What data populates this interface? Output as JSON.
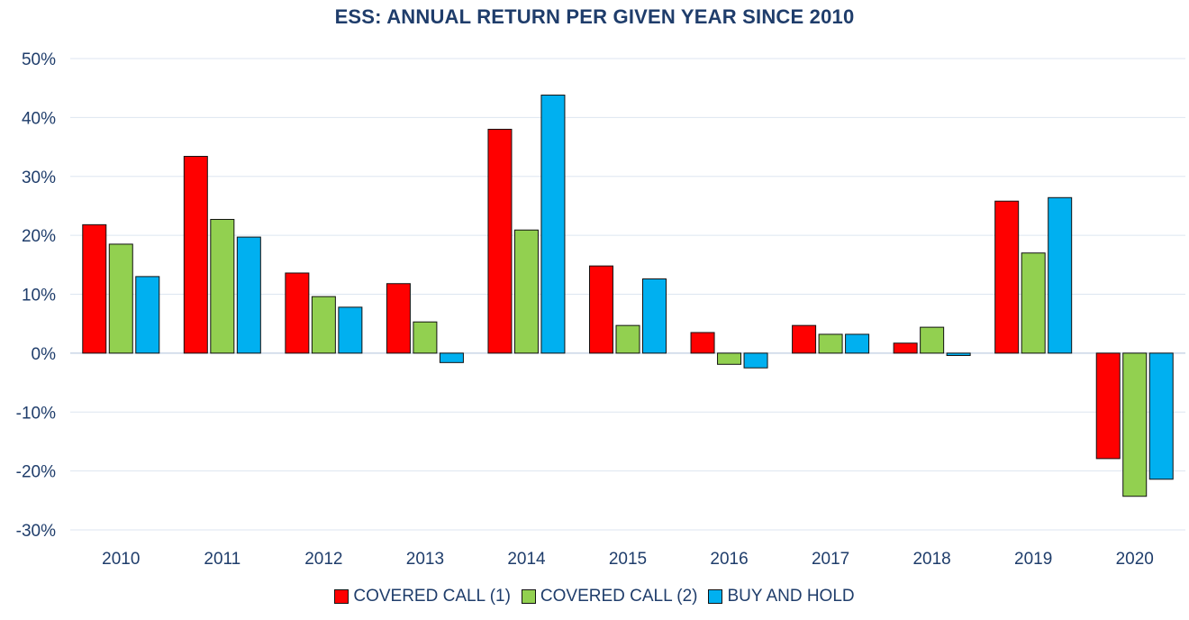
{
  "chart_data": {
    "type": "bar",
    "title": "ESS: ANNUAL RETURN PER GIVEN YEAR SINCE 2010",
    "categories": [
      "2010",
      "2011",
      "2012",
      "2013",
      "2014",
      "2015",
      "2016",
      "2017",
      "2018",
      "2019",
      "2020"
    ],
    "series": [
      {
        "name": "COVERED CALL (1)",
        "color": "#ff0000",
        "values": [
          21.8,
          33.4,
          13.6,
          11.8,
          38.0,
          14.8,
          3.5,
          4.7,
          1.7,
          25.8,
          -17.9
        ]
      },
      {
        "name": "COVERED CALL (2)",
        "color": "#92d050",
        "values": [
          18.5,
          22.7,
          9.6,
          5.3,
          20.9,
          4.7,
          -1.9,
          3.2,
          4.4,
          17.0,
          -24.3
        ]
      },
      {
        "name": "BUY AND HOLD",
        "color": "#00b0f0",
        "values": [
          13.0,
          19.7,
          7.8,
          -1.6,
          43.8,
          12.6,
          -2.5,
          3.2,
          -0.4,
          26.4,
          -21.4
        ]
      }
    ],
    "ylim": [
      -30,
      50
    ],
    "yticks": [
      50,
      40,
      30,
      20,
      10,
      0,
      -10,
      -20,
      -30
    ],
    "ytick_labels": [
      "50%",
      "40%",
      "30%",
      "20%",
      "10%",
      "0%",
      "-10%",
      "-20%",
      "-30%"
    ],
    "grid": true,
    "legend_position": "bottom"
  }
}
